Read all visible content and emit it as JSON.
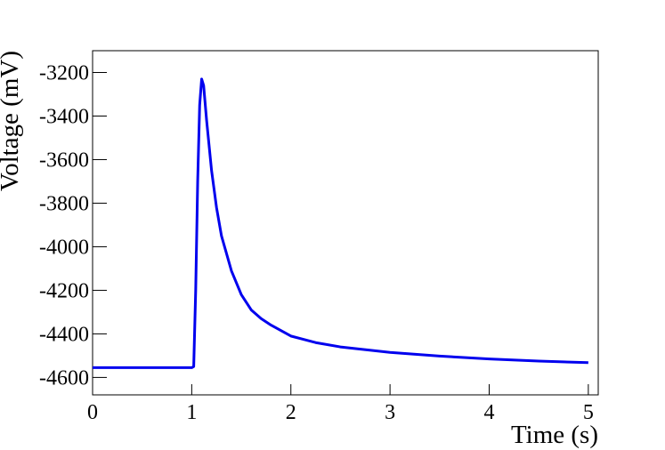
{
  "chart_data": {
    "type": "line",
    "x_label": "Time (s)",
    "y_label": "Voltage (mV)",
    "x": [
      0,
      1.0,
      1.02,
      1.04,
      1.06,
      1.08,
      1.1,
      1.12,
      1.15,
      1.2,
      1.25,
      1.3,
      1.4,
      1.5,
      1.6,
      1.7,
      1.8,
      2.0,
      2.25,
      2.5,
      3.0,
      3.5,
      4.0,
      4.5,
      5.0
    ],
    "series": [
      {
        "color": "#0000ee",
        "values": [
          -4555,
          -4555,
          -4550,
          -4200,
          -3700,
          -3350,
          -3230,
          -3260,
          -3420,
          -3650,
          -3820,
          -3950,
          -4110,
          -4220,
          -4290,
          -4330,
          -4360,
          -4410,
          -4440,
          -4460,
          -4485,
          -4502,
          -4515,
          -4525,
          -4532
        ]
      }
    ],
    "xlim": [
      0,
      5.1
    ],
    "ylim": [
      -4680,
      -3100
    ],
    "xticks": [
      0,
      1,
      2,
      3,
      4,
      5
    ],
    "yticks": [
      -4600,
      -4400,
      -4200,
      -4000,
      -3800,
      -3600,
      -3400,
      -3200
    ]
  }
}
